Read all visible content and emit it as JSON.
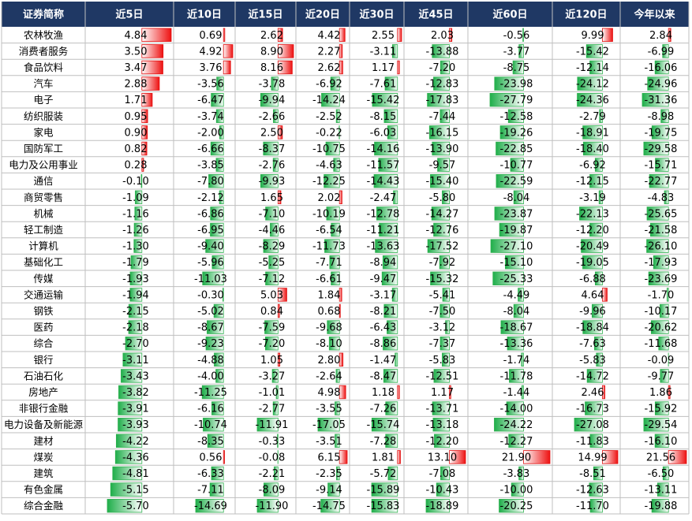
{
  "table": {
    "header": [
      "证券简称",
      "近5日",
      "近10日",
      "近15日",
      "近20日",
      "近30日",
      "近45日",
      "近60日",
      "近120日",
      "今年以来"
    ],
    "rows": [
      [
        "农林牧渔",
        "4.84",
        "0.69",
        "2.62",
        "4.42",
        "2.55",
        "2.03",
        "-0.56",
        "9.99",
        "2.84"
      ],
      [
        "消费者服务",
        "3.50",
        "4.92",
        "8.90",
        "2.27",
        "-3.11",
        "-13.88",
        "-3.77",
        "-15.42",
        "-6.99"
      ],
      [
        "食品饮料",
        "3.47",
        "3.76",
        "8.16",
        "2.62",
        "1.17",
        "-7.20",
        "-8.75",
        "-12.14",
        "-16.06"
      ],
      [
        "汽车",
        "2.88",
        "-3.56",
        "-3.78",
        "-6.92",
        "-7.61",
        "-12.83",
        "-23.98",
        "-24.12",
        "-24.96"
      ],
      [
        "电子",
        "1.71",
        "-6.47",
        "-9.94",
        "-14.24",
        "-15.42",
        "-17.83",
        "-27.79",
        "-24.36",
        "-31.36"
      ],
      [
        "纺织服装",
        "0.95",
        "-3.74",
        "-2.66",
        "-2.52",
        "-8.15",
        "-7.44",
        "-12.58",
        "-2.79",
        "-8.98"
      ],
      [
        "家电",
        "0.90",
        "-2.00",
        "2.50",
        "-0.22",
        "-6.03",
        "-16.15",
        "-19.26",
        "-18.91",
        "-19.75"
      ],
      [
        "国防军工",
        "0.82",
        "-6.66",
        "-8.37",
        "-10.75",
        "-14.16",
        "-13.90",
        "-22.85",
        "-18.40",
        "-29.58"
      ],
      [
        "电力及公用事业",
        "0.28",
        "-3.85",
        "-2.76",
        "-4.63",
        "-11.57",
        "-9.57",
        "-10.77",
        "-6.92",
        "-15.71"
      ],
      [
        "通信",
        "-0.10",
        "-7.80",
        "-9.93",
        "-12.25",
        "-14.43",
        "-15.40",
        "-22.59",
        "-12.15",
        "-22.77"
      ],
      [
        "商贸零售",
        "-1.09",
        "-2.12",
        "1.65",
        "2.02",
        "-2.47",
        "-5.80",
        "-8.04",
        "-3.19",
        "-4.83"
      ],
      [
        "机械",
        "-1.16",
        "-6.86",
        "-7.10",
        "-10.19",
        "-12.78",
        "-14.27",
        "-23.87",
        "-22.13",
        "-25.65"
      ],
      [
        "轻工制造",
        "-1.26",
        "-6.95",
        "-4.46",
        "-6.54",
        "-11.21",
        "-12.76",
        "-19.87",
        "-12.20",
        "-21.58"
      ],
      [
        "计算机",
        "-1.30",
        "-9.40",
        "-8.29",
        "-11.73",
        "-13.63",
        "-17.52",
        "-27.10",
        "-20.49",
        "-26.10"
      ],
      [
        "基础化工",
        "-1.79",
        "-5.96",
        "-5.25",
        "-7.71",
        "-8.94",
        "-7.92",
        "-15.10",
        "-19.05",
        "-17.93"
      ],
      [
        "传媒",
        "-1.93",
        "-11.03",
        "-7.12",
        "-6.61",
        "-9.47",
        "-15.32",
        "-25.33",
        "-6.88",
        "-23.69"
      ],
      [
        "交通运输",
        "-1.94",
        "-0.30",
        "5.03",
        "1.84",
        "-3.17",
        "-5.41",
        "-4.49",
        "4.64",
        "-1.70"
      ],
      [
        "钢铁",
        "-2.15",
        "-5.02",
        "0.84",
        "0.68",
        "-8.21",
        "-7.50",
        "-8.04",
        "-9.96",
        "-10.17"
      ],
      [
        "医药",
        "-2.18",
        "-8.67",
        "-7.59",
        "-9.68",
        "-6.43",
        "-3.12",
        "-18.67",
        "-18.84",
        "-20.62"
      ],
      [
        "综合",
        "-2.70",
        "-9.23",
        "-7.20",
        "-8.10",
        "-8.86",
        "-7.37",
        "-13.36",
        "-7.63",
        "-11.68"
      ],
      [
        "银行",
        "-3.11",
        "-4.88",
        "1.05",
        "2.80",
        "-1.47",
        "-5.83",
        "-1.74",
        "-5.83",
        "-0.09"
      ],
      [
        "石油石化",
        "-3.43",
        "-4.00",
        "-3.27",
        "-2.64",
        "-8.47",
        "-12.51",
        "-11.78",
        "-14.72",
        "-9.77"
      ],
      [
        "房地产",
        "-3.82",
        "-11.25",
        "-1.01",
        "4.98",
        "1.18",
        "1.17",
        "-1.44",
        "2.46",
        "1.86"
      ],
      [
        "非银行金融",
        "-3.91",
        "-6.16",
        "-2.77",
        "-3.55",
        "-7.26",
        "-13.71",
        "-14.00",
        "-16.73",
        "-15.92"
      ],
      [
        "电力设备及新能源",
        "-3.93",
        "-10.74",
        "-11.91",
        "-17.05",
        "-15.74",
        "-13.18",
        "-24.22",
        "-27.08",
        "-29.54"
      ],
      [
        "建材",
        "-4.22",
        "-8.35",
        "-0.33",
        "-3.51",
        "-7.28",
        "-12.20",
        "-12.27",
        "-11.83",
        "-16.10"
      ],
      [
        "煤炭",
        "-4.36",
        "0.56",
        "-0.08",
        "6.15",
        "1.81",
        "13.10",
        "21.90",
        "14.99",
        "21.56"
      ],
      [
        "建筑",
        "-4.81",
        "-6.33",
        "-2.21",
        "-2.35",
        "-5.72",
        "-7.08",
        "-3.83",
        "-8.51",
        "-6.50"
      ],
      [
        "有色金属",
        "-5.15",
        "-7.11",
        "-8.09",
        "-9.14",
        "-15.89",
        "-10.43",
        "-10.00",
        "-12.63",
        "-13.11"
      ],
      [
        "综合金融",
        "-5.70",
        "-14.69",
        "-11.90",
        "-14.75",
        "-15.83",
        "-18.89",
        "-20.25",
        "-11.70",
        "-19.88"
      ]
    ]
  }
}
